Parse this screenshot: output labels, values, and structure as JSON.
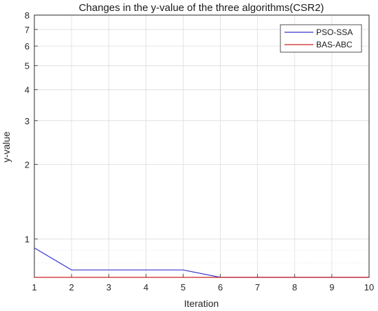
{
  "chart_data": {
    "type": "line",
    "title": "Changes in the y-value of the three algorithms(CSR2)",
    "xlabel": "Iteration",
    "ylabel": "y-value",
    "xlim": [
      1,
      10
    ],
    "ylim": [
      0.7,
      8
    ],
    "yscale": "log",
    "grid": true,
    "legend_position": "top-right",
    "x": [
      1,
      2,
      3,
      4,
      5,
      6,
      7,
      8,
      9,
      10
    ],
    "x_ticks": [
      "1",
      "2",
      "3",
      "4",
      "5",
      "6",
      "7",
      "8",
      "9",
      "10"
    ],
    "y_ticks": [
      {
        "value": 1,
        "label": "1"
      },
      {
        "value": 2,
        "label": "2"
      },
      {
        "value": 3,
        "label": "3"
      },
      {
        "value": 4,
        "label": "4"
      },
      {
        "value": 5,
        "label": "5"
      },
      {
        "value": 6,
        "label": "6"
      },
      {
        "value": 7,
        "label": "7"
      },
      {
        "value": 8,
        "label": "8"
      }
    ],
    "y_minor_grid": [
      0.8,
      0.9
    ],
    "series": [
      {
        "name": "PSO-SSA",
        "color": "#3333cc",
        "values": [
          0.92,
          0.75,
          0.75,
          0.75,
          0.75,
          0.7,
          0.7,
          0.7,
          0.7,
          0.7
        ]
      },
      {
        "name": "BAS-ABC",
        "color": "#cc1f1f",
        "values": [
          0.7,
          0.7,
          0.7,
          0.7,
          0.7,
          0.7,
          0.7,
          0.7,
          0.7,
          0.7
        ]
      }
    ]
  }
}
